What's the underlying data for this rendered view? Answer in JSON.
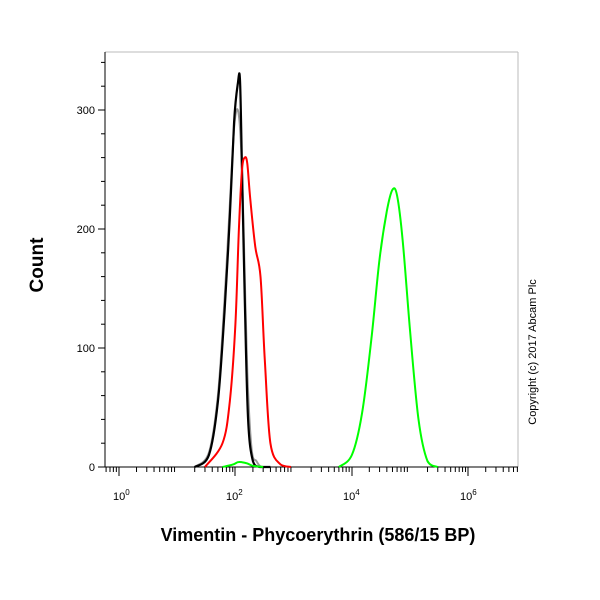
{
  "chart_data": {
    "type": "line",
    "title": "",
    "xlabel": "Vimentin - Phycoerythrin (586/15 BP)",
    "ylabel": "Count",
    "x_scale": "log",
    "xlim": [
      1,
      1000000
    ],
    "ylim": [
      0,
      340
    ],
    "x_ticks": [
      {
        "value": 1,
        "base": "10",
        "exp": "0"
      },
      {
        "value": 100,
        "base": "10",
        "exp": "2"
      },
      {
        "value": 10000,
        "base": "10",
        "exp": "4"
      },
      {
        "value": 1000000,
        "base": "10",
        "exp": "6"
      }
    ],
    "y_ticks": [
      0,
      100,
      200,
      300
    ],
    "grid": false,
    "legend": "none",
    "series": [
      {
        "color": "#999999",
        "x": [
          20,
          35,
          50,
          65,
          80,
          95,
          110,
          125,
          140,
          160,
          190,
          230,
          280,
          400
        ],
        "y": [
          0,
          12,
          60,
          140,
          220,
          285,
          300,
          270,
          190,
          80,
          15,
          5,
          0,
          0
        ]
      },
      {
        "color": "#000000",
        "x": [
          20,
          35,
          50,
          65,
          80,
          95,
          110,
          120,
          130,
          145,
          165,
          200,
          260,
          400
        ],
        "y": [
          0,
          10,
          55,
          130,
          210,
          290,
          322,
          325,
          250,
          140,
          40,
          5,
          0,
          0
        ]
      },
      {
        "color": "#ff0000",
        "x": [
          30,
          60,
          80,
          100,
          115,
          130,
          145,
          160,
          180,
          220,
          270,
          320,
          400,
          600,
          900
        ],
        "y": [
          0,
          20,
          55,
          120,
          200,
          250,
          260,
          255,
          225,
          185,
          160,
          90,
          20,
          2,
          0
        ]
      },
      {
        "color": "#00ff00",
        "x": [
          6000,
          10000,
          15000,
          22000,
          30000,
          40000,
          50000,
          60000,
          75000,
          100000,
          140000,
          200000,
          300000
        ],
        "y": [
          0,
          10,
          45,
          110,
          175,
          215,
          233,
          228,
          190,
          115,
          40,
          5,
          0
        ]
      },
      {
        "color": "#00ff00",
        "x": [
          60,
          90,
          110,
          130,
          160,
          200,
          300
        ],
        "y": [
          0,
          2,
          4,
          4,
          3,
          1,
          0
        ]
      }
    ]
  },
  "annotations": {
    "copyright": "Copyright (c) 2017 Abcam Plc"
  }
}
